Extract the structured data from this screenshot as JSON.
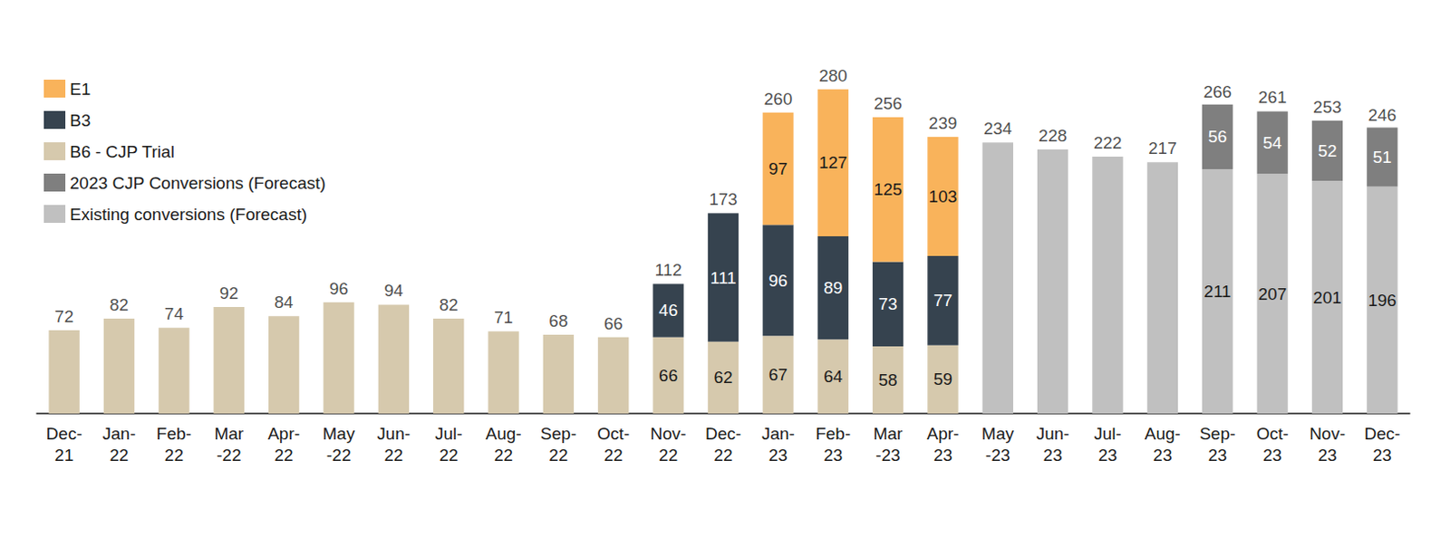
{
  "chart_data": {
    "type": "bar",
    "stacked": true,
    "data_labels": true,
    "tick_labels": "x",
    "grid": false,
    "legend": "upper left",
    "categories": [
      "Dec-\n21",
      "Jan-\n22",
      "Feb-\n22",
      "Mar\n-22",
      "Apr-\n22",
      "May\n-22",
      "Jun-\n22",
      "Jul-\n22",
      "Aug-\n22",
      "Sep-\n22",
      "Oct-\n22",
      "Nov-\n22",
      "Dec-\n22",
      "Jan-\n23",
      "Feb-\n23",
      "Mar\n-23",
      "Apr-\n23",
      "May\n-23",
      "Jun-\n23",
      "Jul-\n23",
      "Aug-\n23",
      "Sep-\n23",
      "Oct-\n23",
      "Nov-\n23",
      "Dec-\n23"
    ],
    "ylim": [
      0,
      300
    ],
    "series": [
      {
        "name": "E1",
        "color": "#f9b35b",
        "values": [
          null,
          null,
          null,
          null,
          null,
          null,
          null,
          null,
          null,
          null,
          null,
          null,
          null,
          97,
          127,
          125,
          103,
          null,
          null,
          null,
          null,
          null,
          null,
          null,
          null
        ]
      },
      {
        "name": "B3",
        "color": "#36434f",
        "values": [
          null,
          null,
          null,
          null,
          null,
          null,
          null,
          null,
          null,
          null,
          null,
          46,
          111,
          96,
          89,
          73,
          77,
          null,
          null,
          null,
          null,
          null,
          null,
          null,
          null
        ]
      },
      {
        "name": "B6 - CJP Trial",
        "color": "#d6c9ad",
        "values": [
          72,
          82,
          74,
          92,
          84,
          96,
          94,
          82,
          71,
          68,
          66,
          66,
          62,
          67,
          64,
          58,
          59,
          null,
          null,
          null,
          null,
          null,
          null,
          null,
          null
        ]
      },
      {
        "name": "2023 CJP Conversions (Forecast)",
        "color": "#7f7f7f",
        "values": [
          null,
          null,
          null,
          null,
          null,
          null,
          null,
          null,
          null,
          null,
          null,
          null,
          null,
          null,
          null,
          null,
          null,
          null,
          null,
          null,
          null,
          56,
          54,
          52,
          51
        ]
      },
      {
        "name": "Existing conversions (Forecast)",
        "color": "#c0c0c0",
        "values": [
          null,
          null,
          null,
          null,
          null,
          null,
          null,
          null,
          null,
          null,
          null,
          null,
          null,
          null,
          null,
          null,
          null,
          234,
          228,
          222,
          217,
          211,
          207,
          201,
          196
        ]
      }
    ],
    "totals": [
      72,
      82,
      74,
      92,
      84,
      96,
      94,
      82,
      71,
      68,
      66,
      112,
      173,
      260,
      280,
      256,
      239,
      234,
      228,
      222,
      217,
      266,
      261,
      253,
      246
    ]
  }
}
